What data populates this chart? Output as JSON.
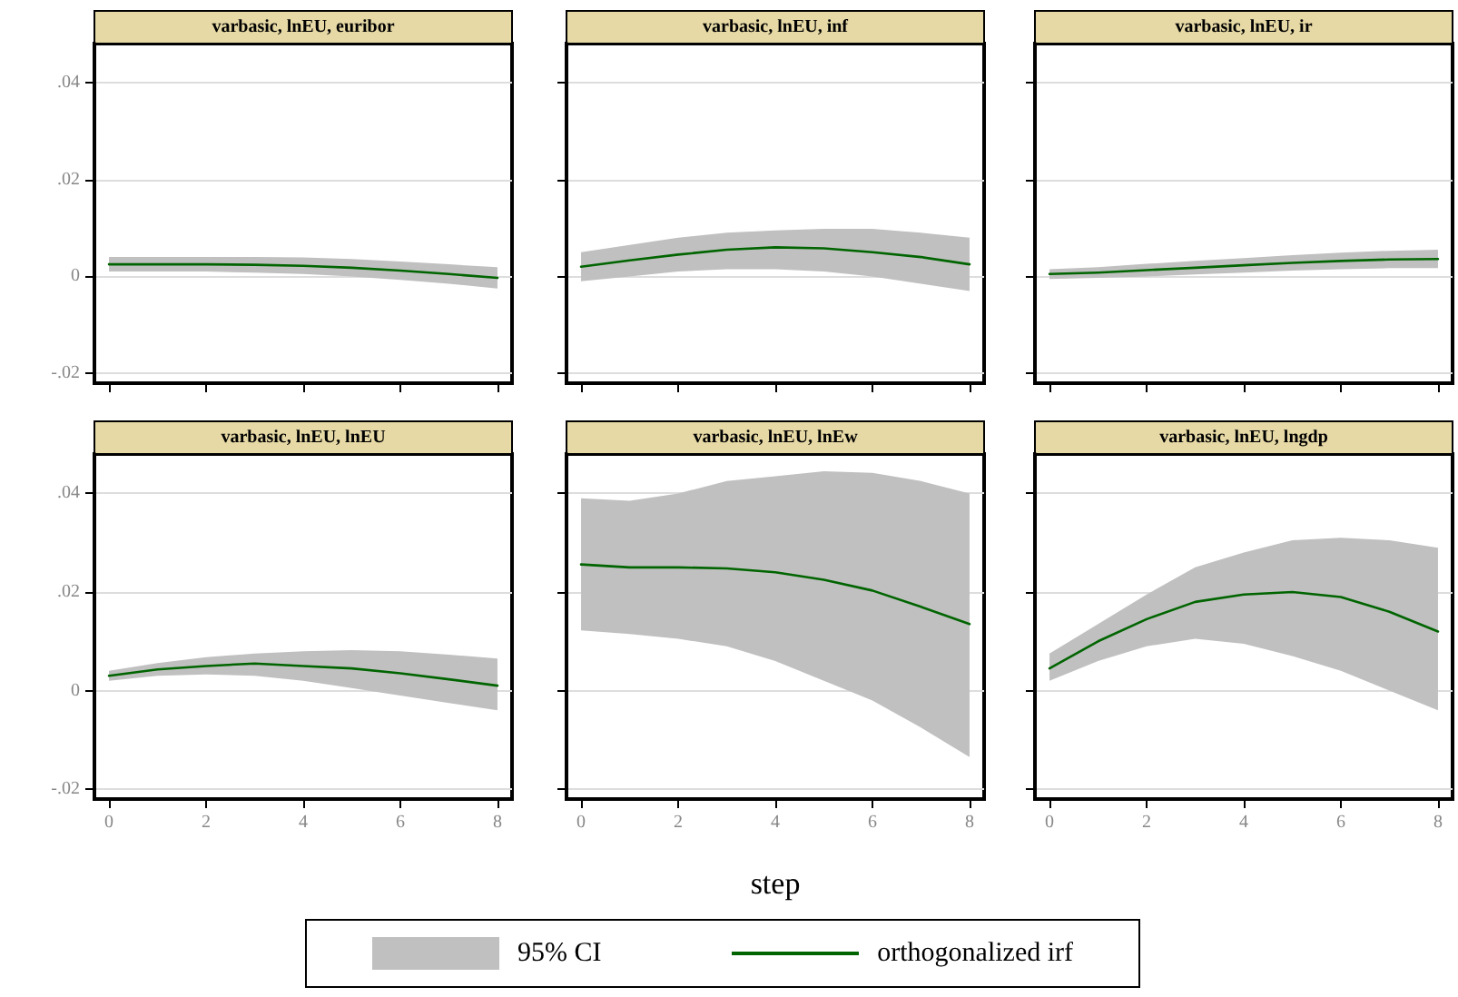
{
  "chart_data": [
    {
      "type": "line",
      "title": "varbasic, lnEU, euribor",
      "x": [
        0,
        1,
        2,
        3,
        4,
        5,
        6,
        7,
        8
      ],
      "xlim": [
        -0.3,
        8.3
      ],
      "xticks": [
        0,
        2,
        4,
        6,
        8
      ],
      "ylim": [
        -0.022,
        0.048
      ],
      "yticks": [
        {
          "value": -0.02,
          "label": "-.02"
        },
        {
          "value": 0,
          "label": "0"
        },
        {
          "value": 0.02,
          "label": ".02"
        },
        {
          "value": 0.04,
          "label": ".04"
        }
      ],
      "grid": "y",
      "tick_labels": "y",
      "legend": false,
      "line_style": "solid",
      "marker": "none",
      "series": [
        {
          "color": "#006400",
          "values": [
            0.0025,
            0.0025,
            0.0025,
            0.0024,
            0.0022,
            0.0018,
            0.0012,
            0.0005,
            -0.0003
          ],
          "lower": [
            0.001,
            0.001,
            0.001,
            0.0008,
            0.0005,
            0,
            -0.0007,
            -0.0015,
            -0.0025
          ],
          "upper": [
            0.004,
            0.004,
            0.004,
            0.004,
            0.0039,
            0.0036,
            0.0031,
            0.0025,
            0.0019
          ]
        }
      ]
    },
    {
      "type": "line",
      "title": "varbasic, lnEU, inf",
      "x": [
        0,
        1,
        2,
        3,
        4,
        5,
        6,
        7,
        8
      ],
      "xlim": [
        -0.3,
        8.3
      ],
      "xticks": [
        0,
        2,
        4,
        6,
        8
      ],
      "ylim": [
        -0.022,
        0.048
      ],
      "yticks": [
        -0.02,
        0,
        0.02,
        0.04
      ],
      "grid": "y",
      "tick_labels": false,
      "legend": false,
      "line_style": "solid",
      "marker": "none",
      "series": [
        {
          "color": "#006400",
          "values": [
            0.002,
            0.0033,
            0.0045,
            0.0055,
            0.006,
            0.0058,
            0.005,
            0.004,
            0.0025
          ],
          "lower": [
            -0.001,
            0,
            0.001,
            0.0015,
            0.0015,
            0.001,
            0,
            -0.0015,
            -0.003
          ],
          "upper": [
            0.005,
            0.0065,
            0.008,
            0.009,
            0.0095,
            0.0098,
            0.0098,
            0.009,
            0.008
          ]
        }
      ]
    },
    {
      "type": "line",
      "title": "varbasic, lnEU, ir",
      "x": [
        0,
        1,
        2,
        3,
        4,
        5,
        6,
        7,
        8
      ],
      "xlim": [
        -0.3,
        8.3
      ],
      "xticks": [
        0,
        2,
        4,
        6,
        8
      ],
      "ylim": [
        -0.022,
        0.048
      ],
      "yticks": [
        -0.02,
        0,
        0.02,
        0.04
      ],
      "grid": "y",
      "tick_labels": false,
      "legend": false,
      "line_style": "solid",
      "marker": "none",
      "series": [
        {
          "color": "#006400",
          "values": [
            0.0005,
            0.0008,
            0.0013,
            0.0018,
            0.0023,
            0.0028,
            0.0032,
            0.0035,
            0.0036
          ],
          "lower": [
            -0.0005,
            -0.0003,
            0,
            0.0004,
            0.0008,
            0.0012,
            0.0015,
            0.0017,
            0.0017
          ],
          "upper": [
            0.0015,
            0.0019,
            0.0026,
            0.0032,
            0.0038,
            0.0044,
            0.0049,
            0.0053,
            0.0055
          ]
        }
      ]
    },
    {
      "type": "line",
      "title": "varbasic, lnEU, lnEU",
      "x": [
        0,
        1,
        2,
        3,
        4,
        5,
        6,
        7,
        8
      ],
      "xlim": [
        -0.3,
        8.3
      ],
      "xticks": [
        0,
        2,
        4,
        6,
        8
      ],
      "ylim": [
        -0.022,
        0.048
      ],
      "yticks": [
        {
          "value": -0.02,
          "label": "-.02"
        },
        {
          "value": 0,
          "label": "0"
        },
        {
          "value": 0.02,
          "label": ".02"
        },
        {
          "value": 0.04,
          "label": ".04"
        }
      ],
      "grid": "y",
      "legend": false,
      "line_style": "solid",
      "marker": "none",
      "series": [
        {
          "color": "#006400",
          "values": [
            0.003,
            0.0043,
            0.005,
            0.0055,
            0.005,
            0.0045,
            0.0035,
            0.0023,
            0.001
          ],
          "lower": [
            0.002,
            0.003,
            0.0033,
            0.003,
            0.002,
            0.0005,
            -0.001,
            -0.0025,
            -0.004
          ],
          "upper": [
            0.004,
            0.0056,
            0.0068,
            0.0075,
            0.008,
            0.0082,
            0.008,
            0.0073,
            0.0065
          ]
        }
      ]
    },
    {
      "type": "line",
      "title": "varbasic, lnEU, lnEw",
      "xlabel": "step",
      "annotations": [
        "95% CI"
      ],
      "x": [
        0,
        1,
        2,
        3,
        4,
        5,
        6,
        7,
        8
      ],
      "xlim": [
        -0.3,
        8.3
      ],
      "xticks": [
        0,
        2,
        4,
        6,
        8
      ],
      "ylim": [
        -0.022,
        0.048
      ],
      "yticks": [
        -0.02,
        0,
        0.02,
        0.04
      ],
      "grid": "y",
      "tick_labels": "x",
      "legend": "bottom",
      "line_style": "solid",
      "marker": "none",
      "series": [
        {
          "name": "orthogonalized irf",
          "color": "#006400",
          "values": [
            0.0256,
            0.025,
            0.025,
            0.0248,
            0.024,
            0.0225,
            0.0203,
            0.017,
            0.0135
          ],
          "lower": [
            0.0122,
            0.0115,
            0.0105,
            0.009,
            0.006,
            0.002,
            -0.002,
            -0.0075,
            -0.0135
          ],
          "upper": [
            0.039,
            0.0385,
            0.04,
            0.0425,
            0.0435,
            0.0445,
            0.0442,
            0.0425,
            0.04
          ]
        }
      ]
    },
    {
      "type": "line",
      "title": "varbasic, lnEU, lngdp",
      "x": [
        0,
        1,
        2,
        3,
        4,
        5,
        6,
        7,
        8
      ],
      "xlim": [
        -0.3,
        8.3
      ],
      "xticks": [
        0,
        2,
        4,
        6,
        8
      ],
      "ylim": [
        -0.022,
        0.048
      ],
      "yticks": [
        -0.02,
        0,
        0.02,
        0.04
      ],
      "grid": "y",
      "tick_labels": "x",
      "legend": false,
      "line_style": "solid",
      "marker": "none",
      "series": [
        {
          "color": "#006400",
          "values": [
            0.0045,
            0.01,
            0.0145,
            0.018,
            0.0195,
            0.02,
            0.019,
            0.016,
            0.012
          ],
          "lower": [
            0.002,
            0.006,
            0.009,
            0.0105,
            0.0095,
            0.007,
            0.004,
            0,
            -0.004
          ],
          "upper": [
            0.0075,
            0.0135,
            0.0195,
            0.025,
            0.028,
            0.0305,
            0.031,
            0.0305,
            0.029
          ]
        }
      ]
    }
  ]
}
